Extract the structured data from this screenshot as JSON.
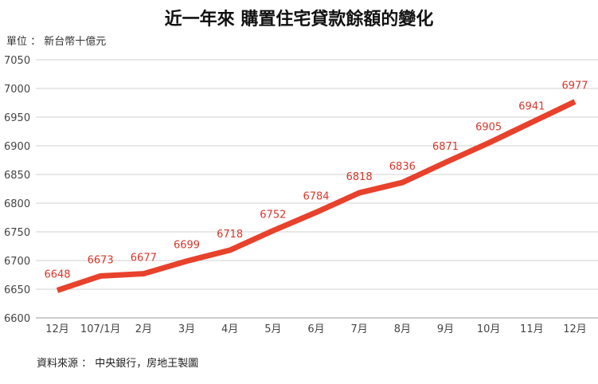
{
  "chart_data": {
    "type": "line",
    "title": "近一年來 購置住宅貸款餘額的變化",
    "unit_label": "單位 ： 新台幣十億元",
    "source": "資料來源 ： 中央銀行，房地王製圖",
    "categories": [
      "12月",
      "107/1月",
      "2月",
      "3月",
      "4月",
      "5月",
      "6月",
      "7月",
      "8月",
      "9月",
      "10月",
      "11月",
      "12月"
    ],
    "values": [
      6648,
      6673,
      6677,
      6699,
      6718,
      6752,
      6784,
      6818,
      6836,
      6871,
      6905,
      6941,
      6977
    ],
    "ylim": [
      6600,
      7050
    ],
    "yticks": [
      6600,
      6650,
      6700,
      6750,
      6800,
      6850,
      6900,
      6950,
      7000,
      7050
    ],
    "grid": true,
    "line_color": "#e8412c",
    "label_color": "#d9362b"
  }
}
